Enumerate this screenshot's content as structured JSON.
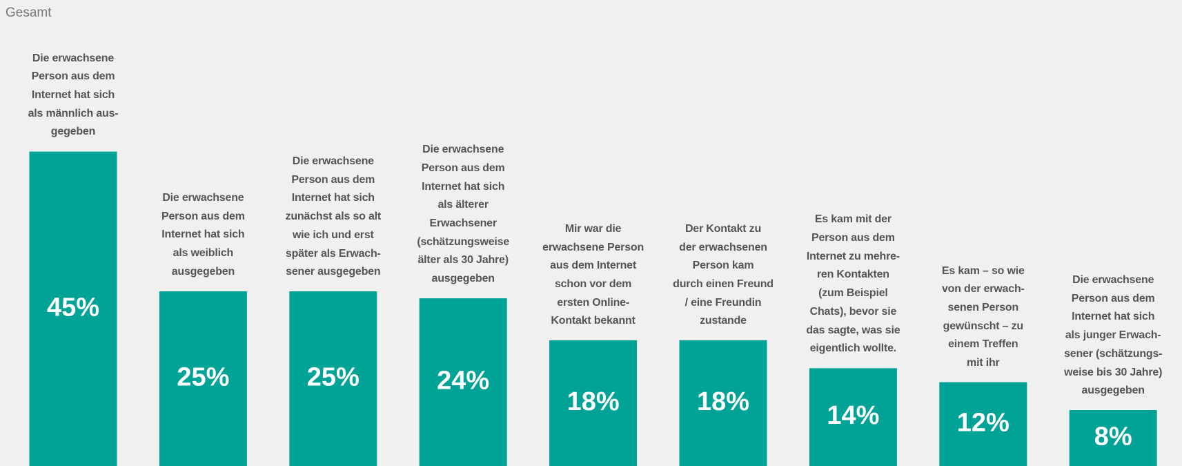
{
  "chart_data": {
    "type": "bar",
    "title": "Gesamt",
    "categories": [
      "Die erwachsene\nPerson aus dem\nInternet hat sich\nals männlich aus-\ngegeben",
      "Die erwachsene\nPerson aus dem\nInternet hat sich\nals weiblich\nausgegeben",
      "Die erwachsene\nPerson aus dem\nInternet hat sich\nzunächst als so alt\nwie ich und erst\nspäter als Erwach-\nsener ausgegeben",
      "Die erwachsene\nPerson aus dem\nInternet hat sich\nals älterer\nErwachsener\n(schätzungsweise\nälter als 30 Jahre)\nausgegeben",
      "Mir war die\nerwachsene Person\naus dem Internet\nschon vor dem\nersten Online-\nKontakt bekannt",
      "Der Kontakt zu\nder erwachsenen\nPerson kam\ndurch einen Freund\n/ eine Freundin\nzustande",
      "Es kam mit der\nPerson aus dem\nInternet zu mehre-\nren Kontakten\n(zum Beispiel\nChats), bevor sie\ndas sagte, was sie\neigentlich wollte.",
      "Es kam – so wie\nvon der erwach-\nsenen Person\ngewünscht – zu\neinem Treffen\nmit ihr",
      "Die erwachsene\nPerson aus dem\nInternet hat sich\nals junger Erwach-\nsener (schätzungs-\nweise bis 30 Jahre)\nausgegeben"
    ],
    "values": [
      45,
      25,
      25,
      24,
      18,
      18,
      14,
      12,
      8
    ],
    "value_labels": [
      "45%",
      "25%",
      "25%",
      "24%",
      "18%",
      "18%",
      "14%",
      "12%",
      "8%"
    ],
    "color": "#00a396"
  }
}
